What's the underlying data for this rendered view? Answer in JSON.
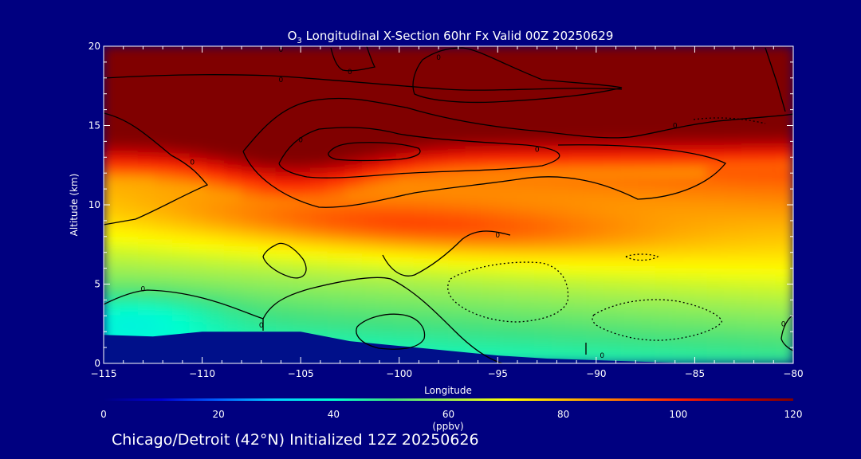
{
  "chart_data": {
    "type": "heatmap",
    "title": "O₃ Longitudinal X-Section 60hr  Fx Valid 00Z 20250629",
    "title_prefix": "O",
    "title_subscript": "3",
    "title_rest": " Longitudinal X-Section 60hr  Fx Valid 00Z 20250629",
    "xlabel": "Longitude",
    "ylabel": "Altitude (km)",
    "xlim": [
      -115,
      -80
    ],
    "ylim": [
      0,
      20
    ],
    "x_ticks": [
      -115,
      -110,
      -105,
      -100,
      -95,
      -90,
      -85,
      -80
    ],
    "x_tick_labels": [
      "−115",
      "−110",
      "−105",
      "−100",
      "−95",
      "−90",
      "−85",
      "−80"
    ],
    "y_ticks": [
      0,
      5,
      10,
      15,
      20
    ],
    "y_tick_labels": [
      "0",
      "5",
      "10",
      "15",
      "20"
    ],
    "x": [
      -115,
      -112.5,
      -110,
      -107.5,
      -105,
      -102.5,
      -100,
      -97.5,
      -95,
      -92.5,
      -90,
      -87.5,
      -85,
      -82.5,
      -80
    ],
    "y": [
      0,
      1,
      2,
      3,
      4,
      5,
      6,
      7,
      8,
      9,
      10,
      11,
      12,
      13,
      14,
      15,
      16,
      17,
      18,
      19,
      20
    ],
    "surface_km": [
      1.8,
      1.7,
      2.0,
      2.0,
      2.0,
      1.4,
      1.1,
      0.8,
      0.5,
      0.3,
      0.2,
      0.1,
      0.0,
      0.0,
      0.0
    ],
    "colorbar": {
      "label": "(ppbv)",
      "range": [
        0,
        120
      ],
      "ticks": [
        0,
        20,
        40,
        60,
        80,
        100,
        120
      ],
      "tick_labels": [
        "0",
        "20",
        "40",
        "60",
        "80",
        "100",
        "120"
      ],
      "colors": [
        "#000080",
        "#0000d0",
        "#0060ff",
        "#00d0ff",
        "#00ffd0",
        "#40e080",
        "#a0f050",
        "#ffff00",
        "#ffc000",
        "#ff7000",
        "#ff2000",
        "#c00000",
        "#800000"
      ]
    },
    "contour_labels": [
      {
        "x": -113,
        "y": 4.7,
        "text": "0"
      },
      {
        "x": -107,
        "y": 2.4,
        "text": "0"
      },
      {
        "x": -89.7,
        "y": 0.5,
        "text": "0"
      },
      {
        "x": -80.5,
        "y": 2.5,
        "text": "0"
      },
      {
        "x": -110.5,
        "y": 12.7,
        "text": "0"
      },
      {
        "x": -106,
        "y": 17.9,
        "text": "0"
      },
      {
        "x": -106,
        "y": 19.8,
        "text": "0"
      },
      {
        "x": -102.5,
        "y": 18.4,
        "text": "0"
      },
      {
        "x": -98,
        "y": 19.3,
        "text": "0"
      },
      {
        "x": -105,
        "y": 14.1,
        "text": "0"
      },
      {
        "x": -93,
        "y": 13.5,
        "text": "0"
      },
      {
        "x": -86,
        "y": 15.0,
        "text": "0"
      },
      {
        "x": -95,
        "y": 8.1,
        "text": "0"
      }
    ]
  },
  "footer": "Chicago/Detroit (42°N) Initialized 12Z 20250626"
}
